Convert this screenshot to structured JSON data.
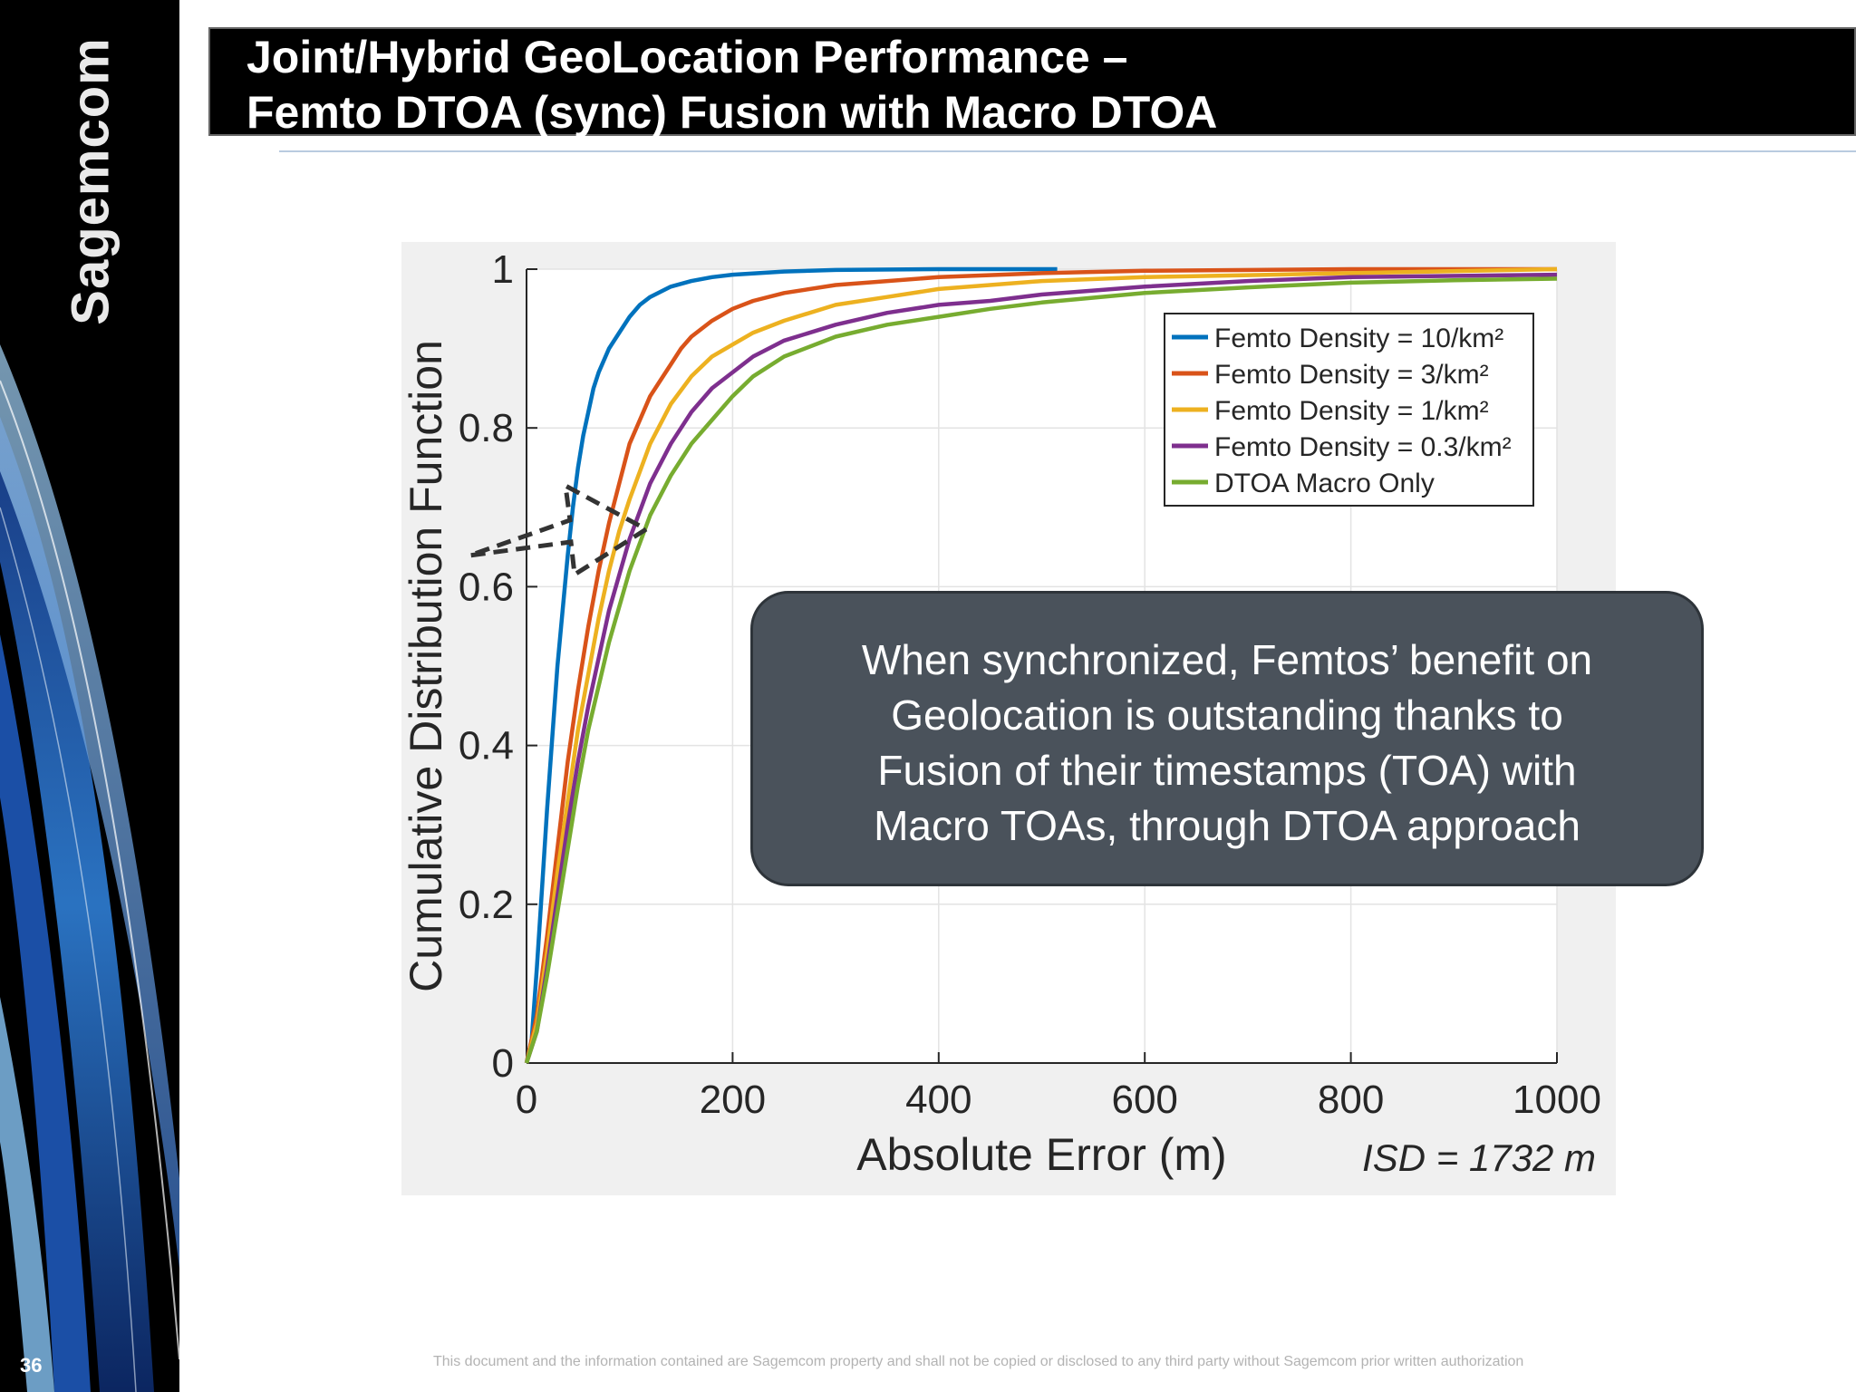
{
  "sidebar": {
    "logo_text": "Sagemcom",
    "page_number": "36"
  },
  "header": {
    "title_line1": "Joint/Hybrid GeoLocation Performance –",
    "title_line2": "Femto DTOA (sync) Fusion with Macro DTOA"
  },
  "callout": {
    "lines": [
      "When synchronized, Femtos’ benefit on",
      "Geolocation is outstanding thanks to",
      "Fusion of their timestamps (TOA) with",
      "Macro TOAs, through DTOA approach"
    ]
  },
  "footer": {
    "disclaimer": "This document and the information contained are Sagemcom property and shall not be copied or disclosed to any third party without Sagemcom prior written authorization"
  },
  "colors": {
    "femto_10": "#0072bd",
    "femto_3": "#d95319",
    "femto_1": "#edb120",
    "femto_03": "#7e2f8e",
    "macro_only": "#77ac30",
    "title_bg": "#000000",
    "callout_bg": "#4a525b"
  },
  "chart_data": {
    "type": "line",
    "xlabel": "Absolute Error (m)",
    "ylabel": "Cumulative Distribution Function",
    "xlim": [
      0,
      1000
    ],
    "ylim": [
      0,
      1
    ],
    "xticks": [
      0,
      200,
      400,
      600,
      800,
      1000
    ],
    "yticks": [
      0,
      0.2,
      0.4,
      0.6,
      0.8,
      1
    ],
    "ytick_labels": [
      "0",
      "0.2",
      "0.4",
      "0.6",
      "0.8",
      "1"
    ],
    "grid": true,
    "legend_position": "top-right",
    "annotation": "ISD = 1732 m",
    "series": [
      {
        "name": "Femto Density = 10/km²",
        "color": "#0072bd",
        "x": [
          0,
          5,
          10,
          15,
          20,
          25,
          30,
          35,
          40,
          45,
          50,
          55,
          60,
          65,
          70,
          80,
          90,
          100,
          110,
          120,
          140,
          160,
          180,
          200,
          250,
          300,
          400,
          515
        ],
        "y": [
          0,
          0.03,
          0.12,
          0.22,
          0.32,
          0.41,
          0.5,
          0.57,
          0.64,
          0.7,
          0.75,
          0.79,
          0.82,
          0.85,
          0.87,
          0.9,
          0.92,
          0.94,
          0.955,
          0.965,
          0.978,
          0.985,
          0.99,
          0.993,
          0.997,
          0.999,
          1.0,
          1.0
        ]
      },
      {
        "name": "Femto Density = 3/km²",
        "color": "#d95319",
        "x": [
          0,
          10,
          20,
          30,
          40,
          50,
          60,
          70,
          80,
          90,
          100,
          110,
          120,
          130,
          140,
          150,
          160,
          180,
          200,
          220,
          250,
          300,
          400,
          500,
          600,
          800,
          1000
        ],
        "y": [
          0,
          0.06,
          0.16,
          0.27,
          0.38,
          0.47,
          0.55,
          0.62,
          0.68,
          0.73,
          0.78,
          0.81,
          0.84,
          0.86,
          0.88,
          0.9,
          0.915,
          0.935,
          0.95,
          0.96,
          0.97,
          0.98,
          0.99,
          0.995,
          0.998,
          1.0,
          1.0
        ]
      },
      {
        "name": "Femto Density = 1/km²",
        "color": "#edb120",
        "x": [
          0,
          10,
          20,
          30,
          40,
          50,
          60,
          70,
          80,
          90,
          100,
          120,
          140,
          160,
          180,
          200,
          220,
          250,
          300,
          350,
          400,
          500,
          600,
          800,
          1000
        ],
        "y": [
          0,
          0.05,
          0.14,
          0.24,
          0.33,
          0.42,
          0.49,
          0.56,
          0.62,
          0.67,
          0.71,
          0.78,
          0.83,
          0.865,
          0.89,
          0.905,
          0.92,
          0.935,
          0.955,
          0.965,
          0.975,
          0.985,
          0.99,
          0.995,
          1.0
        ]
      },
      {
        "name": "Femto Density = 0.3/km²",
        "color": "#7e2f8e",
        "x": [
          0,
          10,
          20,
          30,
          40,
          50,
          60,
          80,
          100,
          120,
          140,
          160,
          180,
          200,
          220,
          250,
          300,
          350,
          400,
          450,
          500,
          600,
          700,
          800,
          1000
        ],
        "y": [
          0,
          0.04,
          0.12,
          0.21,
          0.3,
          0.38,
          0.45,
          0.57,
          0.66,
          0.73,
          0.78,
          0.82,
          0.85,
          0.87,
          0.89,
          0.91,
          0.93,
          0.945,
          0.955,
          0.96,
          0.968,
          0.978,
          0.985,
          0.99,
          0.993
        ]
      },
      {
        "name": "DTOA Macro Only",
        "color": "#77ac30",
        "x": [
          0,
          10,
          20,
          30,
          40,
          50,
          60,
          80,
          100,
          120,
          140,
          160,
          180,
          200,
          220,
          250,
          300,
          350,
          400,
          450,
          500,
          600,
          700,
          800,
          900,
          1000
        ],
        "y": [
          0,
          0.04,
          0.11,
          0.19,
          0.27,
          0.35,
          0.42,
          0.53,
          0.62,
          0.69,
          0.74,
          0.78,
          0.81,
          0.84,
          0.865,
          0.89,
          0.915,
          0.93,
          0.94,
          0.95,
          0.958,
          0.97,
          0.977,
          0.983,
          0.986,
          0.988
        ]
      }
    ]
  }
}
